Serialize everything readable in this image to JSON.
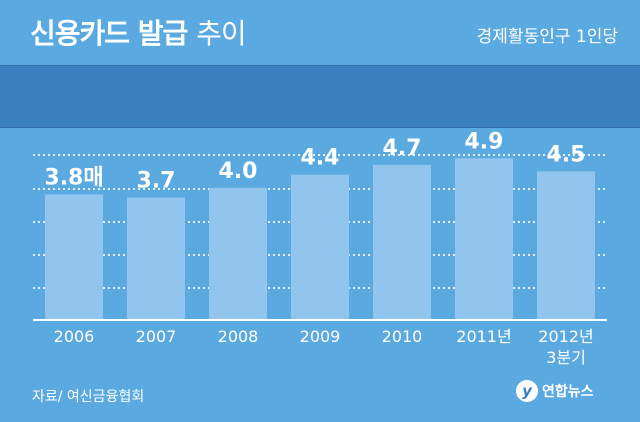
{
  "header": {
    "title_bold": "신용카드 발급",
    "title_light": "추이",
    "unit": "경제활동인구 1인당"
  },
  "footer": {
    "source": "자료/ 여신금융협회",
    "logo_glyph": "y",
    "logo_text": "연합뉴스"
  },
  "colors": {
    "background": "#5aa9e0",
    "band": "#3b7fc1",
    "bar": "#92c5ee",
    "text": "#ffffff"
  },
  "chart_data": {
    "type": "bar",
    "categories": [
      "2006",
      "2007",
      "2008",
      "2009",
      "2010",
      "2011년",
      "2012년\n3분기"
    ],
    "values": [
      3.8,
      3.7,
      4.0,
      4.4,
      4.7,
      4.9,
      4.5
    ],
    "value_labels": [
      "3.8매",
      "3.7",
      "4.0",
      "4.4",
      "4.7",
      "4.9",
      "4.5"
    ],
    "ylim": [
      0,
      5.0
    ],
    "grid": true,
    "legend": "none"
  }
}
